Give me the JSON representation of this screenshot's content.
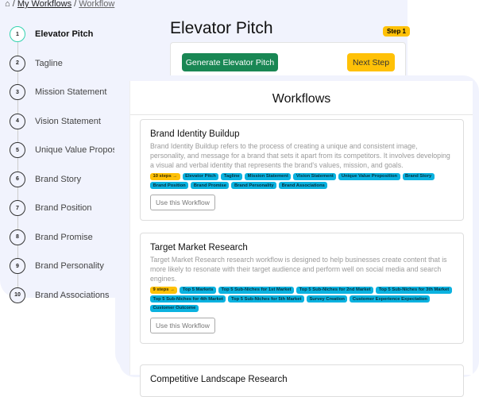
{
  "breadcrumb": {
    "home_icon": "home-icon",
    "items": [
      "My Workflows",
      "Workflow"
    ]
  },
  "sidebar": {
    "steps": [
      {
        "num": "1",
        "label": "Elevator Pitch",
        "active": true
      },
      {
        "num": "2",
        "label": "Tagline"
      },
      {
        "num": "3",
        "label": "Mission Statement"
      },
      {
        "num": "4",
        "label": "Vision Statement"
      },
      {
        "num": "5",
        "label": "Unique Value Proposition"
      },
      {
        "num": "6",
        "label": "Brand Story"
      },
      {
        "num": "7",
        "label": "Brand Position"
      },
      {
        "num": "8",
        "label": "Brand Promise"
      },
      {
        "num": "9",
        "label": "Brand Personality"
      },
      {
        "num": "10",
        "label": "Brand Associations"
      }
    ]
  },
  "main": {
    "title": "Elevator Pitch",
    "step_badge": "Step 1",
    "generate_label": "Generate Elevator Pitch",
    "next_label": "Next Step"
  },
  "modal": {
    "title": "Workflows",
    "workflows": [
      {
        "title": "Brand Identity Buildup",
        "description": "Brand Identity Buildup refers to the process of creating a unique and consistent image, personality, and message for a brand that sets it apart from its competitors. It involves developing a visual and verbal identity that represents the brand's values, mission, and goals.",
        "steps_badge": "10 steps →",
        "tags": [
          "Elevator Pitch",
          "Tagline",
          "Mission Statement",
          "Vision Statement",
          "Unique Value Proposition",
          "Brand Story",
          "Brand Position",
          "Brand Promise",
          "Brand Personality",
          "Brand Associations"
        ],
        "button": "Use this Workflow"
      },
      {
        "title": "Target Market Research",
        "description": "Target Market Research research workflow is designed to help businesses create content that is more likely to resonate with their target audience and perform well on social media and search engines.",
        "steps_badge": "9 steps →",
        "tags": [
          "Top 5 Markets",
          "Top 5 Sub-Niches for 1st Market",
          "Top 5 Sub-Niches for 2nd Market",
          "Top 5 Sub-Niches for 3th Market",
          "Top 5 Sub-Niches for 4th Market",
          "Top 5 Sub-Niches for 5th Market",
          "Survey Creation",
          "Customer Experience Expectation",
          "Customer Outcome"
        ],
        "button": "Use this Workflow"
      },
      {
        "title": "Competitive Landscape Research"
      }
    ]
  },
  "colors": {
    "accent_green": "#198754",
    "warning_yellow": "#ffc107",
    "tag_blue": "#0bb2e0",
    "panel_bg": "#f1f3fd"
  }
}
